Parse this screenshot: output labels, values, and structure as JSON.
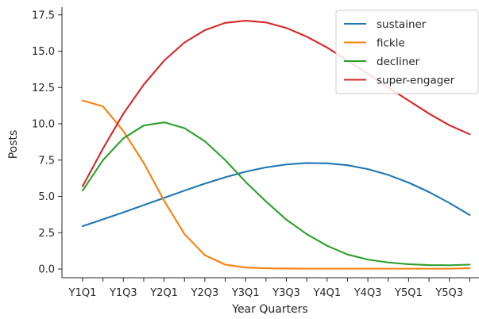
{
  "chart_data": {
    "type": "line",
    "xlabel": "Year Quarters",
    "ylabel": "Posts",
    "x": [
      "Y1Q1",
      "Y1Q2",
      "Y1Q3",
      "Y1Q4",
      "Y2Q1",
      "Y2Q2",
      "Y2Q3",
      "Y2Q4",
      "Y3Q1",
      "Y3Q2",
      "Y3Q3",
      "Y3Q4",
      "Y4Q1",
      "Y4Q2",
      "Y4Q3",
      "Y4Q4",
      "Y5Q1",
      "Y5Q2",
      "Y5Q3",
      "Y5Q4"
    ],
    "xticks": [
      "Y1Q1",
      "Y1Q3",
      "Y2Q1",
      "Y2Q3",
      "Y3Q1",
      "Y3Q3",
      "Y4Q1",
      "Y4Q3",
      "Y5Q1",
      "Y5Q3"
    ],
    "yticks": [
      "0.0",
      "2.5",
      "5.0",
      "7.5",
      "10.0",
      "12.5",
      "15.0",
      "17.5"
    ],
    "ylim": [
      -0.5,
      17.9
    ],
    "legend_position": "top-right",
    "grid": false,
    "series": [
      {
        "name": "sustainer",
        "color": "#1f77b4",
        "values": [
          2.95,
          3.42,
          3.9,
          4.4,
          4.9,
          5.4,
          5.88,
          6.32,
          6.7,
          7.0,
          7.2,
          7.3,
          7.28,
          7.15,
          6.88,
          6.48,
          5.95,
          5.3,
          4.55,
          3.72
        ]
      },
      {
        "name": "fickle",
        "color": "#ff7f0e",
        "values": [
          11.6,
          11.2,
          9.5,
          7.3,
          4.7,
          2.4,
          0.95,
          0.3,
          0.1,
          0.05,
          0.03,
          0.02,
          0.02,
          0.02,
          0.02,
          0.02,
          0.02,
          0.02,
          0.02,
          0.05
        ]
      },
      {
        "name": "decliner",
        "color": "#2ca02c",
        "values": [
          5.4,
          7.5,
          9.0,
          9.88,
          10.1,
          9.7,
          8.8,
          7.5,
          6.0,
          4.65,
          3.4,
          2.4,
          1.6,
          1.0,
          0.65,
          0.45,
          0.33,
          0.27,
          0.26,
          0.3
        ]
      },
      {
        "name": "super-engager",
        "color": "#d62728",
        "values": [
          5.7,
          8.3,
          10.7,
          12.7,
          14.35,
          15.6,
          16.45,
          16.95,
          17.1,
          16.98,
          16.6,
          16.0,
          15.25,
          14.35,
          13.45,
          12.5,
          11.6,
          10.7,
          9.9,
          9.28
        ]
      }
    ]
  }
}
